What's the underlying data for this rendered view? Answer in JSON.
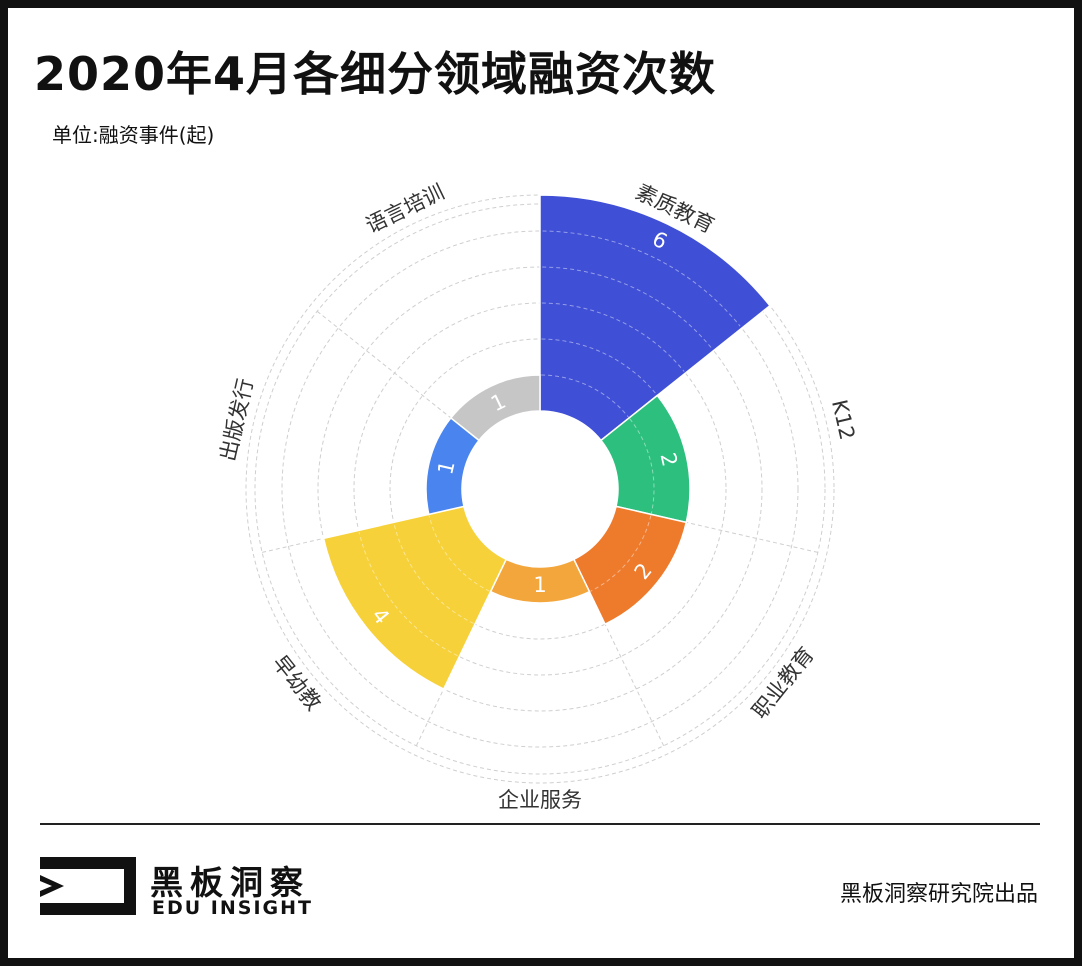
{
  "title": "2020年4月各细分领域融资次数",
  "unit": "单位:融资事件(起)",
  "footer": {
    "logo_cn": "黑板洞察",
    "logo_en": "EDU INSIGHT",
    "credit": "黑板洞察研究院出品"
  },
  "chart_data": {
    "type": "bar",
    "subtype": "polar-rose",
    "categories": [
      "素质教育",
      "K12",
      "职业教育",
      "企业服务",
      "早幼教",
      "出版发行",
      "语言培训"
    ],
    "values": [
      6,
      2,
      2,
      1,
      4,
      1,
      1
    ],
    "colors": [
      "#3f4fd6",
      "#2dbf7e",
      "#ee7a2c",
      "#f3a63c",
      "#f6d13a",
      "#4a84ee",
      "#c6c6c6"
    ],
    "rlim": [
      0,
      6
    ],
    "grid": true,
    "legend": "none"
  }
}
